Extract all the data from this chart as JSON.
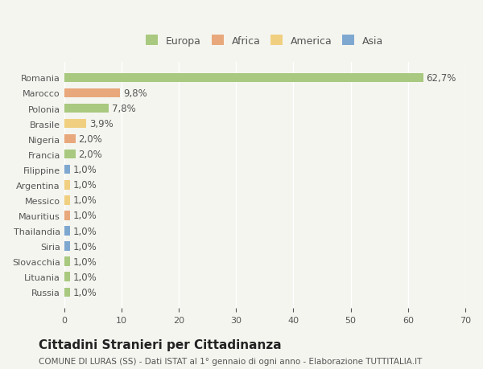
{
  "categories": [
    "Russia",
    "Lituania",
    "Slovacchia",
    "Siria",
    "Thailandia",
    "Mauritius",
    "Messico",
    "Argentina",
    "Filippine",
    "Francia",
    "Nigeria",
    "Brasile",
    "Polonia",
    "Marocco",
    "Romania"
  ],
  "values": [
    1.0,
    1.0,
    1.0,
    1.0,
    1.0,
    1.0,
    1.0,
    1.0,
    1.0,
    2.0,
    2.0,
    3.9,
    7.8,
    9.8,
    62.7
  ],
  "labels": [
    "1,0%",
    "1,0%",
    "1,0%",
    "1,0%",
    "1,0%",
    "1,0%",
    "1,0%",
    "1,0%",
    "1,0%",
    "2,0%",
    "2,0%",
    "3,9%",
    "7,8%",
    "9,8%",
    "62,7%"
  ],
  "continents": [
    "Europa",
    "Europa",
    "Europa",
    "Asia",
    "Asia",
    "Africa",
    "America",
    "America",
    "Asia",
    "Europa",
    "Africa",
    "America",
    "Europa",
    "Africa",
    "Europa"
  ],
  "continent_colors": {
    "Europa": "#a8c97f",
    "Africa": "#e8a87c",
    "America": "#f0d080",
    "Asia": "#7fa8d0"
  },
  "legend_items": [
    "Europa",
    "Africa",
    "America",
    "Asia"
  ],
  "legend_colors": [
    "#a8c97f",
    "#e8a87c",
    "#f0d080",
    "#7fa8d0"
  ],
  "xlim": [
    0,
    70
  ],
  "xticks": [
    0,
    10,
    20,
    30,
    40,
    50,
    60,
    70
  ],
  "title": "Cittadini Stranieri per Cittadinanza",
  "subtitle": "COMUNE DI LURAS (SS) - Dati ISTAT al 1° gennaio di ogni anno - Elaborazione TUTTITALIA.IT",
  "bg_color": "#f5f5f0",
  "bar_height": 0.6,
  "label_fontsize": 8.5,
  "title_fontsize": 11,
  "subtitle_fontsize": 7.5,
  "tick_fontsize": 8,
  "legend_fontsize": 9
}
